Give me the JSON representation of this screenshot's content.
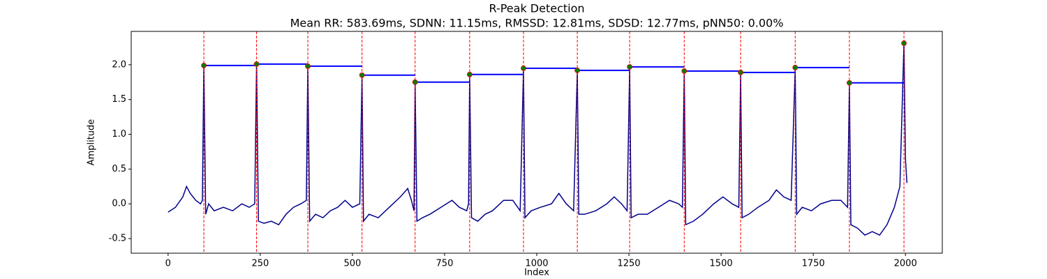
{
  "chart_data": {
    "type": "line",
    "title": "R-Peak Detection",
    "subtitle": "Mean RR: 583.69ms, SDNN: 11.15ms, RMSSD: 12.81ms, SDSD: 12.77ms, pNN50: 0.00%",
    "xlabel": "Index",
    "ylabel": "Amplitude",
    "xlim": [
      -100,
      2100
    ],
    "ylim": [
      -0.71,
      2.48
    ],
    "xticks": [
      0,
      250,
      500,
      750,
      1000,
      1250,
      1500,
      1750,
      2000
    ],
    "yticks": [
      -0.5,
      {
        "value": 0,
        "label": "0.0"
      },
      0.5,
      {
        "value": 1,
        "label": "1.0"
      },
      1.5,
      {
        "value": 2,
        "label": "2.0"
      }
    ],
    "signal": {
      "color": "#00008b",
      "x": [
        0,
        20,
        40,
        50,
        60,
        75,
        88,
        93,
        97,
        102,
        110,
        125,
        150,
        175,
        200,
        220,
        235,
        240,
        245,
        260,
        280,
        300,
        320,
        340,
        360,
        375,
        379,
        384,
        400,
        420,
        440,
        460,
        480,
        500,
        520,
        526,
        530,
        545,
        570,
        600,
        630,
        650,
        660,
        667,
        670,
        675,
        690,
        710,
        740,
        770,
        790,
        810,
        815,
        818,
        823,
        840,
        860,
        880,
        910,
        935,
        955,
        964,
        968,
        985,
        1010,
        1040,
        1060,
        1080,
        1100,
        1110,
        1114,
        1130,
        1160,
        1190,
        1210,
        1230,
        1245,
        1252,
        1256,
        1275,
        1300,
        1330,
        1360,
        1385,
        1395,
        1400,
        1404,
        1425,
        1450,
        1480,
        1505,
        1530,
        1548,
        1553,
        1557,
        1575,
        1600,
        1630,
        1650,
        1670,
        1690,
        1701,
        1705,
        1720,
        1745,
        1770,
        1800,
        1825,
        1843,
        1848,
        1852,
        1870,
        1890,
        1910,
        1930,
        1950,
        1970,
        1985,
        1996,
        2000,
        2004
      ],
      "y": [
        -0.12,
        -0.05,
        0.1,
        0.25,
        0.15,
        0.05,
        0.0,
        0.05,
        1.99,
        -0.15,
        0.0,
        -0.1,
        -0.05,
        -0.1,
        0.0,
        -0.05,
        0.0,
        2.01,
        -0.25,
        -0.28,
        -0.25,
        -0.3,
        -0.15,
        -0.05,
        0.0,
        0.05,
        1.98,
        -0.25,
        -0.15,
        -0.2,
        -0.1,
        -0.05,
        0.05,
        -0.05,
        0.0,
        1.85,
        -0.25,
        -0.15,
        -0.2,
        -0.05,
        0.1,
        0.22,
        0.05,
        -0.1,
        1.75,
        -0.25,
        -0.2,
        -0.15,
        -0.05,
        0.05,
        -0.05,
        -0.1,
        0.0,
        1.86,
        -0.2,
        -0.25,
        -0.15,
        -0.1,
        0.05,
        0.05,
        -0.1,
        1.95,
        -0.2,
        -0.1,
        -0.05,
        0.0,
        0.15,
        0.0,
        -0.1,
        1.92,
        -0.15,
        -0.15,
        -0.1,
        0.0,
        0.1,
        0.0,
        -0.1,
        1.97,
        -0.2,
        -0.15,
        -0.15,
        -0.05,
        0.05,
        0.0,
        -0.05,
        1.91,
        -0.3,
        -0.25,
        -0.15,
        0.0,
        0.1,
        0.0,
        -0.05,
        1.89,
        -0.2,
        -0.15,
        -0.05,
        0.05,
        0.2,
        0.1,
        0.05,
        1.96,
        -0.15,
        -0.05,
        -0.1,
        0.0,
        0.05,
        0.05,
        -0.05,
        1.74,
        -0.3,
        -0.35,
        -0.45,
        -0.4,
        -0.45,
        -0.3,
        -0.05,
        0.25,
        2.31,
        0.65,
        0.3
      ]
    },
    "peaks": {
      "color": "#008000",
      "edgecolor": "#ff0000",
      "line_color": "#ff0000",
      "level_color": "#0000ff",
      "x": [
        97,
        240,
        379,
        526,
        670,
        818,
        964,
        1110,
        1252,
        1400,
        1553,
        1701,
        1848,
        1996
      ],
      "y": [
        1.99,
        2.01,
        1.98,
        1.85,
        1.75,
        1.86,
        1.95,
        1.92,
        1.97,
        1.91,
        1.89,
        1.96,
        1.74,
        2.31
      ]
    }
  }
}
